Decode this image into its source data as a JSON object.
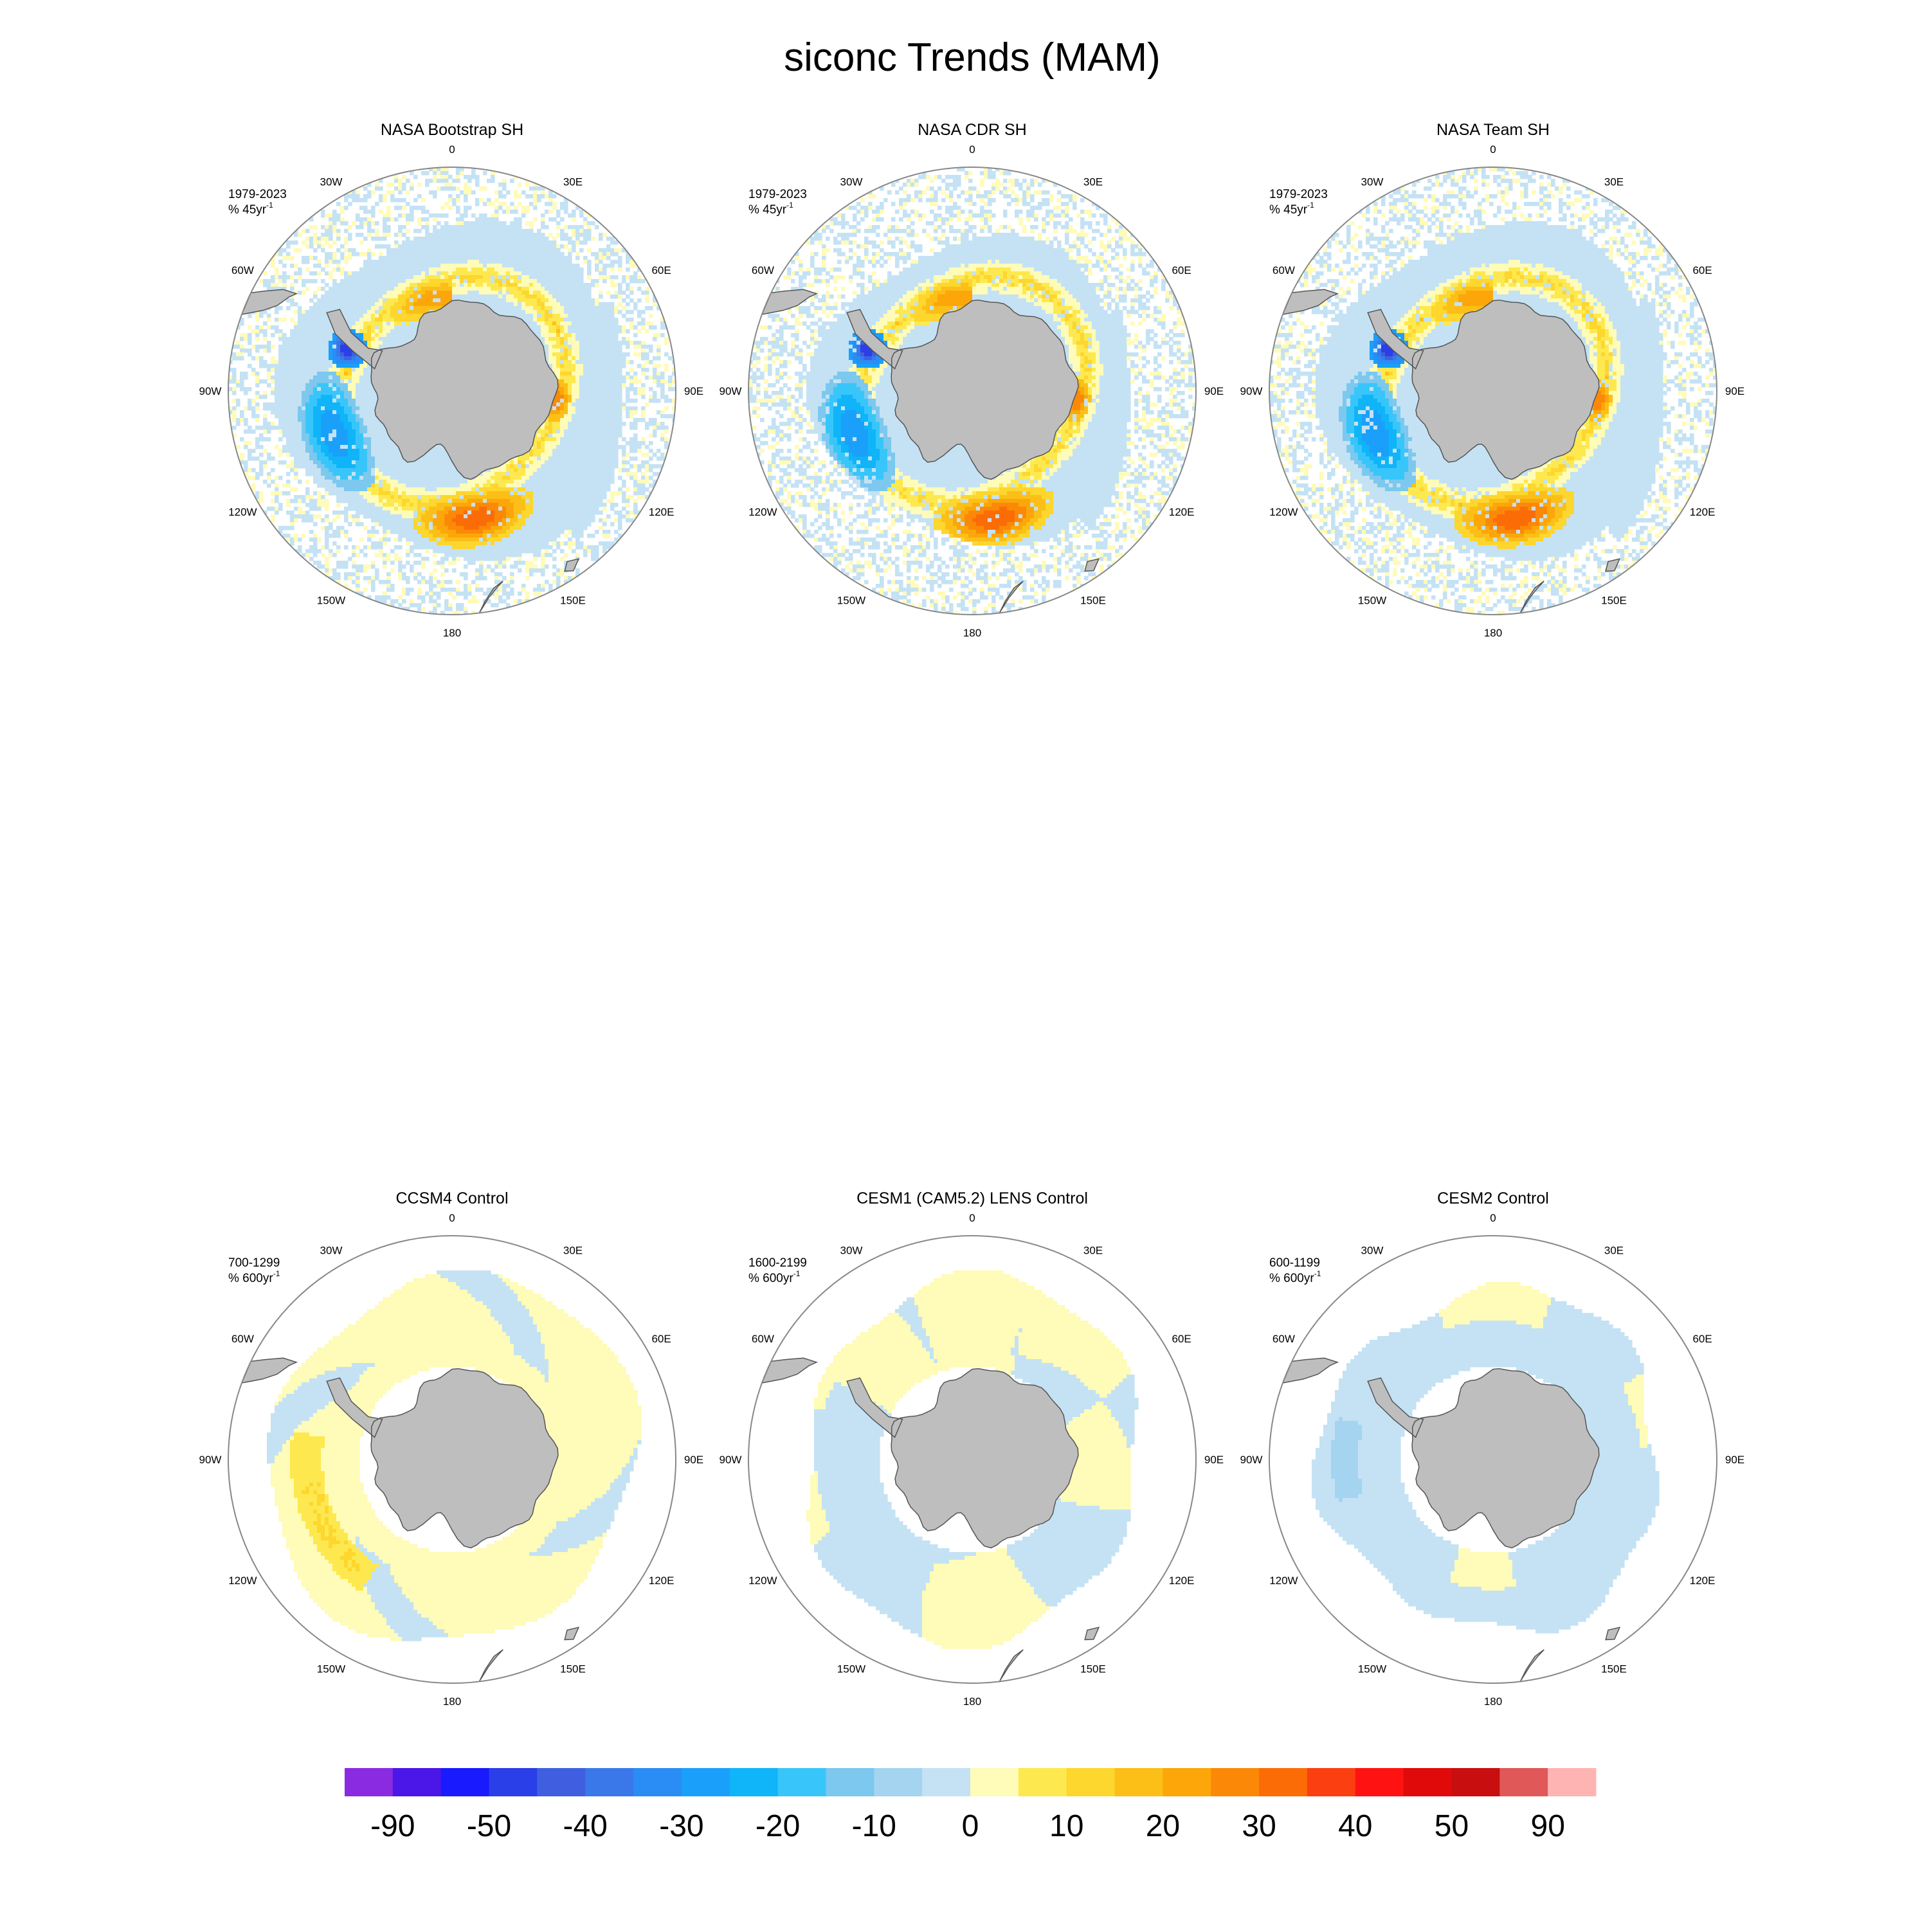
{
  "title": "siconc Trends (MAM)",
  "colors": {
    "land": "#bebebe",
    "coast": "#555555",
    "circle": "#888888"
  },
  "lon_labels": [
    "0",
    "30E",
    "60E",
    "90E",
    "120E",
    "150E",
    "180",
    "150W",
    "120W",
    "90W",
    "60W",
    "30W"
  ],
  "panels": [
    {
      "title": "NASA Bootstrap SH",
      "period": "1979-2023",
      "units": "% 45yr",
      "sup": "-1",
      "pattern": "obs",
      "variant": 0
    },
    {
      "title": "NASA CDR SH",
      "period": "1979-2023",
      "units": "% 45yr",
      "sup": "-1",
      "pattern": "obs",
      "variant": 1
    },
    {
      "title": "NASA Team SH",
      "period": "1979-2023",
      "units": "% 45yr",
      "sup": "-1",
      "pattern": "obs",
      "variant": 2
    },
    {
      "title": "CCSM4 Control",
      "period": "700-1299",
      "units": "% 600yr",
      "sup": "-1",
      "pattern": "ccsm4",
      "variant": 0
    },
    {
      "title": "CESM1 (CAM5.2) LENS Control",
      "period": "1600-2199",
      "units": "% 600yr",
      "sup": "-1",
      "pattern": "cesm1",
      "variant": 0
    },
    {
      "title": "CESM2 Control",
      "period": "600-1199",
      "units": "% 600yr",
      "sup": "-1",
      "pattern": "cesm2",
      "variant": 0
    }
  ],
  "colorbar": {
    "colors": [
      "#8a2be2",
      "#4b16e8",
      "#1a1aff",
      "#2a3fe8",
      "#3f5fe0",
      "#3a78ea",
      "#2a8cf5",
      "#1aa0fa",
      "#10b4f8",
      "#38c6fa",
      "#7cc8ee",
      "#a4d4f0",
      "#c4e2f4",
      "#fffbb8",
      "#fde94f",
      "#fdd62e",
      "#fcbf17",
      "#fca60a",
      "#fb8907",
      "#fb6c06",
      "#fb3f10",
      "#ff1212",
      "#e00a0a",
      "#c80e0e",
      "#e05858",
      "#ffb4b4"
    ],
    "labels": [
      "-90",
      "-50",
      "-40",
      "-30",
      "-20",
      "-10",
      "0",
      "10",
      "20",
      "30",
      "40",
      "50",
      "90"
    ]
  }
}
